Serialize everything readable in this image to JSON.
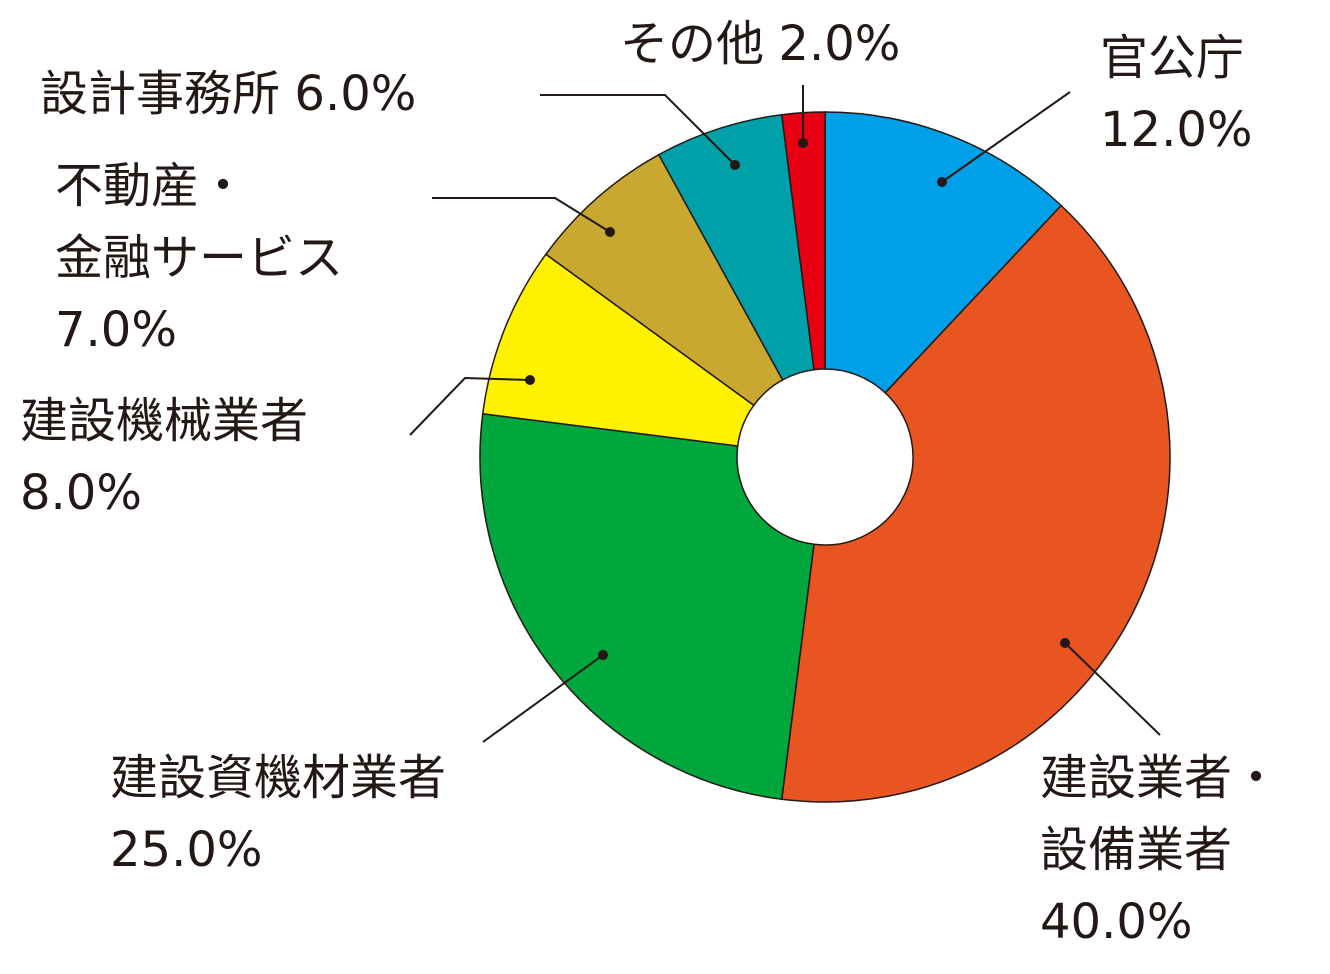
{
  "chart_data": {
    "type": "donut",
    "categories": [
      "官公庁",
      "建設業者・\n設備業者",
      "建設資機材業者",
      "建設機械業者",
      "不動産・\n金融サービス",
      "設計事務所",
      "その他"
    ],
    "values": [
      12,
      40,
      25,
      8,
      7,
      6,
      2
    ],
    "value_labels": [
      "12.0%",
      "40.0%",
      "25.0%",
      "8.0%",
      "7.0%",
      "6.0%",
      "2.0%"
    ],
    "colors": [
      "#00a0e9",
      "#e95520",
      "#00a73c",
      "#fff100",
      "#c9a832",
      "#00a0a8",
      "#e60012"
    ]
  }
}
